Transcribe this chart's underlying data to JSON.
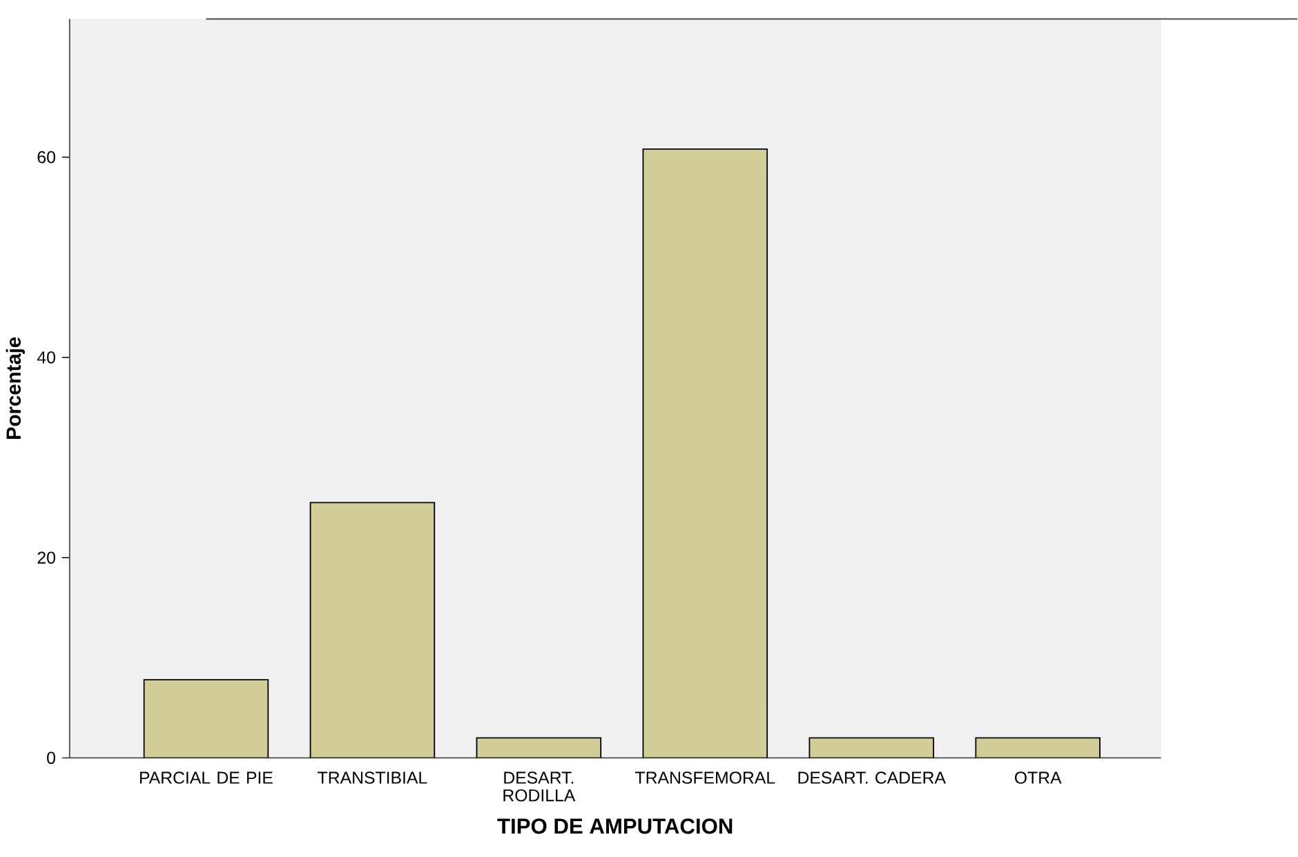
{
  "chart_data": {
    "type": "bar",
    "xlabel": "TIPO DE AMPUTACION",
    "ylabel": "Porcentaje",
    "categories": [
      "PARCIAL DE PIE",
      "TRANSTIBIAL",
      "DESART. RODILLA",
      "TRANSFEMORAL",
      "DESART. CADERA",
      "OTRA"
    ],
    "values": [
      7.8,
      25.5,
      2.0,
      60.8,
      2.0,
      2.0
    ],
    "color": "#d3ce97",
    "ylim": [
      0,
      73.8
    ],
    "yticks": [
      0,
      20,
      40,
      60
    ]
  }
}
